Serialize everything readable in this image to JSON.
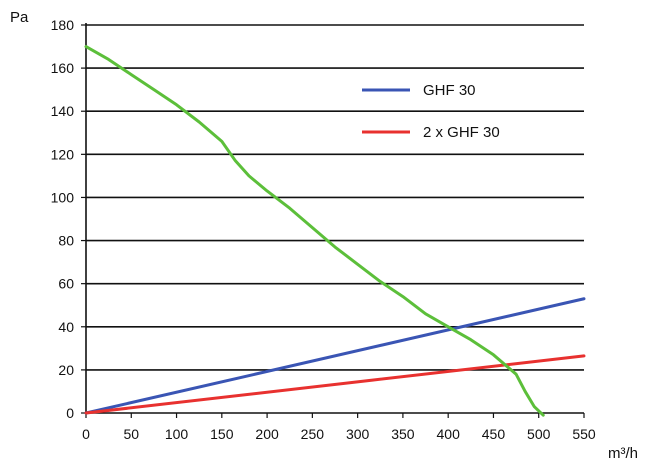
{
  "chart_data": {
    "type": "line",
    "xlabel": "m³/h",
    "ylabel": "Pa",
    "xlim": [
      0,
      550
    ],
    "ylim": [
      0,
      180
    ],
    "x_ticks": [
      0,
      50,
      100,
      150,
      200,
      250,
      300,
      350,
      400,
      450,
      500,
      550
    ],
    "y_ticks": [
      0,
      20,
      40,
      60,
      80,
      100,
      120,
      140,
      160,
      180
    ],
    "grid": "horizontal",
    "legend_position": "top-right",
    "series": [
      {
        "name": "GHF 30",
        "color": "#3a55b4",
        "x": [
          0,
          550
        ],
        "y": [
          0,
          53
        ]
      },
      {
        "name": "2 x GHF 30",
        "color": "#e8312f",
        "x": [
          0,
          550
        ],
        "y": [
          0,
          26.5
        ]
      },
      {
        "color": "#5cbf3a",
        "x": [
          0,
          25,
          50,
          75,
          100,
          125,
          150,
          165,
          180,
          200,
          225,
          250,
          275,
          300,
          325,
          350,
          375,
          400,
          425,
          450,
          475,
          485,
          495,
          505
        ],
        "y": [
          170,
          164,
          157,
          150,
          143,
          135,
          126,
          117,
          110,
          103,
          95,
          86,
          77,
          69,
          61,
          54,
          46,
          40,
          34,
          27,
          18,
          10,
          3,
          -1
        ]
      }
    ]
  }
}
